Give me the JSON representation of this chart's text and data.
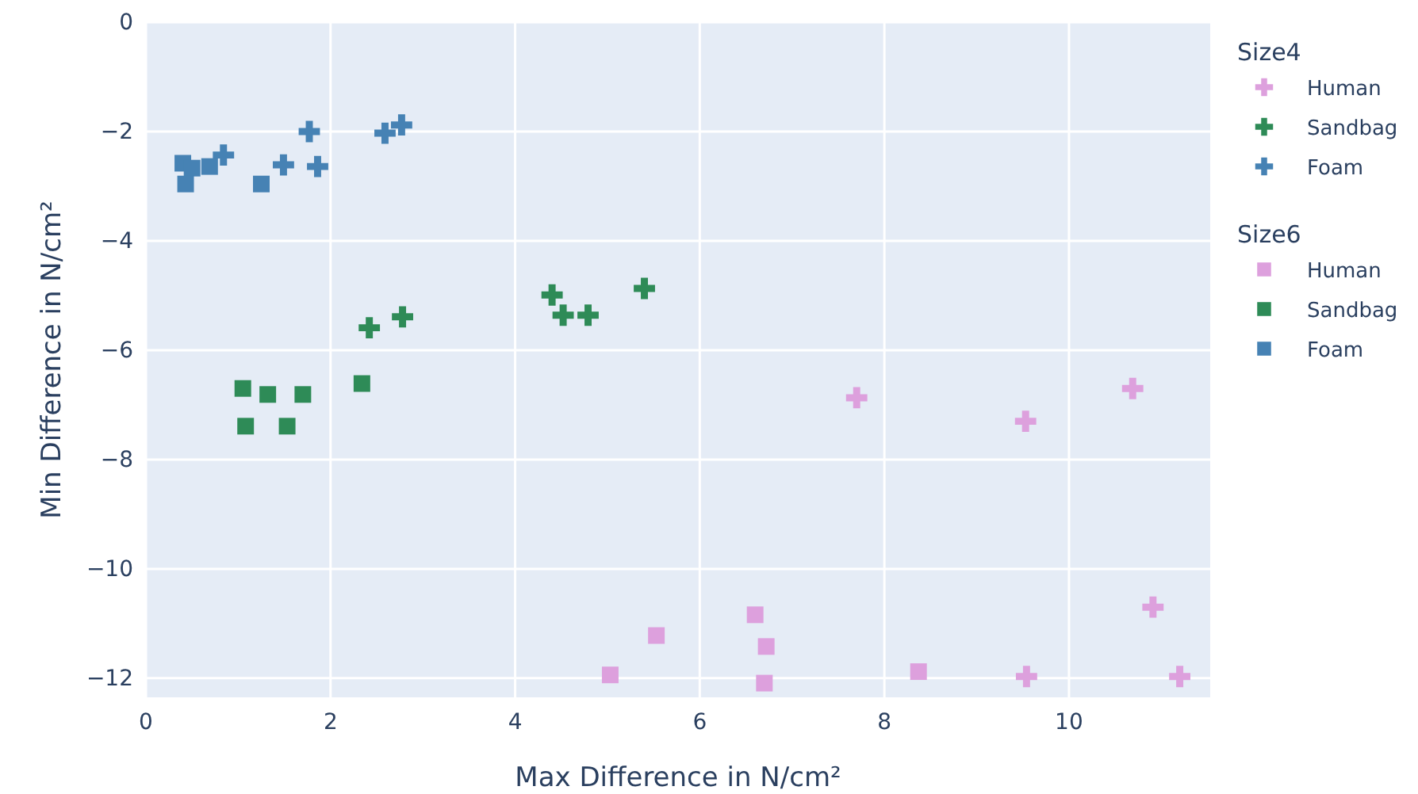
{
  "chart_data": {
    "type": "scatter",
    "xlabel": "Max Difference in N/cm²",
    "ylabel": "Min Difference in N/cm²",
    "legend_title": [
      "Size4",
      "Size6"
    ],
    "legend": "right",
    "grid": true,
    "xlim": [
      0,
      11.53
    ],
    "ylim": [
      -12.35,
      0
    ],
    "xticks": [
      0,
      2,
      4,
      6,
      8,
      10
    ],
    "yticks": [
      0,
      {
        "value": -2,
        "label": "−2"
      },
      {
        "value": -4,
        "label": "−4"
      },
      {
        "value": -6,
        "label": "−6"
      },
      {
        "value": -8,
        "label": "−8"
      },
      {
        "value": -10,
        "label": "−10"
      },
      {
        "value": -12,
        "label": "−12"
      }
    ],
    "series": [
      {
        "name": "Human",
        "color": "#dda0dd",
        "marker": "cross",
        "x": [
          7.7,
          9.53,
          10.69,
          10.91,
          9.54,
          11.2
        ],
        "values": [
          -6.87,
          -7.3,
          -6.7,
          -10.7,
          -11.97,
          -11.97
        ]
      },
      {
        "name": "Sandbag",
        "color": "#2e8b57",
        "marker": "cross",
        "x": [
          2.42,
          2.78,
          4.4,
          4.52,
          4.79,
          5.4
        ],
        "values": [
          -5.59,
          -5.39,
          -4.99,
          -5.36,
          -5.36,
          -4.87
        ]
      },
      {
        "name": "Foam",
        "color": "#4682b4",
        "marker": "cross",
        "x": [
          0.84,
          1.49,
          1.77,
          1.86,
          2.59,
          2.77
        ],
        "values": [
          -2.43,
          -2.61,
          -2.0,
          -2.64,
          -2.03,
          -1.88
        ]
      },
      {
        "name": "Human",
        "color": "#dda0dd",
        "marker": "square",
        "x": [
          5.03,
          5.53,
          6.6,
          6.72,
          6.7,
          8.37
        ],
        "values": [
          -11.94,
          -11.22,
          -10.84,
          -11.42,
          -12.09,
          -11.88
        ]
      },
      {
        "name": "Sandbag",
        "color": "#2e8b57",
        "marker": "square",
        "x": [
          1.05,
          1.32,
          1.7,
          1.08,
          1.53,
          2.34
        ],
        "values": [
          -6.7,
          -6.81,
          -6.81,
          -7.39,
          -7.39,
          -6.61
        ]
      },
      {
        "name": "Foam",
        "color": "#4682b4",
        "marker": "square",
        "x": [
          0.4,
          0.5,
          0.43,
          0.69,
          1.25
        ],
        "values": [
          -2.58,
          -2.67,
          -2.96,
          -2.64,
          -2.96
        ]
      }
    ]
  }
}
